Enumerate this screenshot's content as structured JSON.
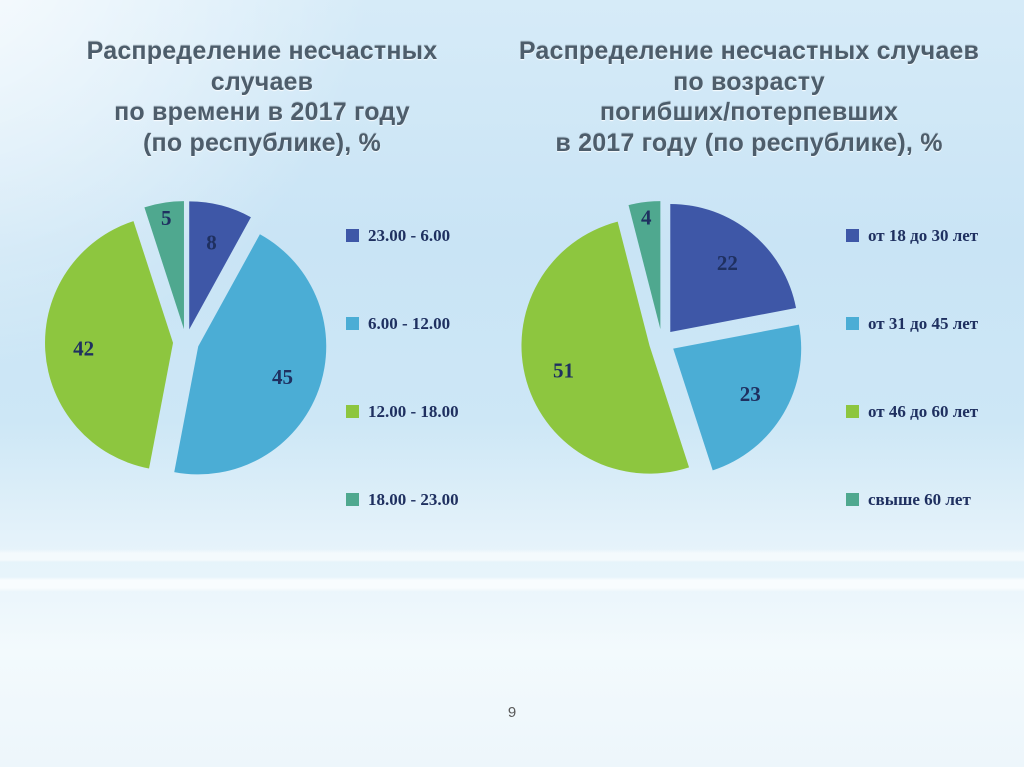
{
  "page": {
    "number": "9"
  },
  "chart_data": [
    {
      "type": "pie",
      "title": "Распределение несчастных\nслучаев\nпо времени в 2017 году\n(по республике), %",
      "labels": [
        "23.00 - 6.00",
        "6.00 - 12.00",
        "12.00 - 18.00",
        "18.00 - 23.00"
      ],
      "values": [
        8,
        45,
        42,
        5
      ],
      "colors": [
        "#3e57a7",
        "#4badd5",
        "#8dc63f",
        "#4fa88f"
      ],
      "legend_position": "right",
      "start_angle_deg": 0,
      "direction": "clockwise",
      "exploded": true
    },
    {
      "type": "pie",
      "title": "Распределение несчастных случаев\nпо возрасту\nпогибших/потерпевших\nв 2017 году (по республике), %",
      "labels": [
        "от 18 до 30 лет",
        "от 31 до 45 лет",
        "от 46 до 60 лет",
        "свыше 60 лет"
      ],
      "values": [
        22,
        23,
        51,
        4
      ],
      "colors": [
        "#3e57a7",
        "#4badd5",
        "#8dc63f",
        "#4fa88f"
      ],
      "legend_position": "right",
      "start_angle_deg": 0,
      "direction": "clockwise",
      "exploded": true
    }
  ]
}
